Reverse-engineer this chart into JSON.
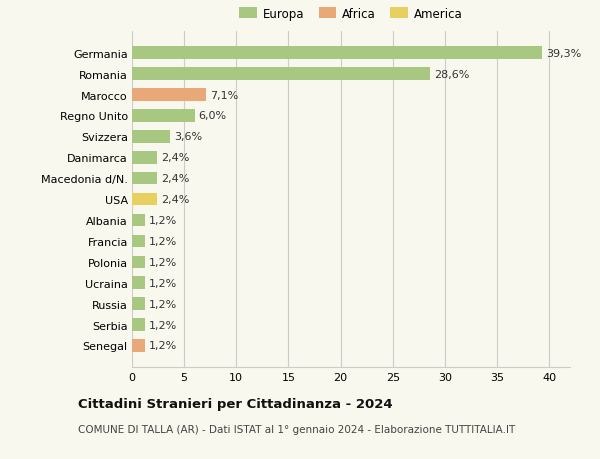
{
  "categories": [
    "Germania",
    "Romania",
    "Marocco",
    "Regno Unito",
    "Svizzera",
    "Danimarca",
    "Macedonia d/N.",
    "USA",
    "Albania",
    "Francia",
    "Polonia",
    "Ucraina",
    "Russia",
    "Serbia",
    "Senegal"
  ],
  "values": [
    39.3,
    28.6,
    7.1,
    6.0,
    3.6,
    2.4,
    2.4,
    2.4,
    1.2,
    1.2,
    1.2,
    1.2,
    1.2,
    1.2,
    1.2
  ],
  "labels": [
    "39,3%",
    "28,6%",
    "7,1%",
    "6,0%",
    "3,6%",
    "2,4%",
    "2,4%",
    "2,4%",
    "1,2%",
    "1,2%",
    "1,2%",
    "1,2%",
    "1,2%",
    "1,2%",
    "1,2%"
  ],
  "colors": [
    "#a8c882",
    "#a8c882",
    "#e8a878",
    "#a8c882",
    "#a8c882",
    "#a8c882",
    "#a8c882",
    "#e8d060",
    "#a8c882",
    "#a8c882",
    "#a8c882",
    "#a8c882",
    "#a8c882",
    "#a8c882",
    "#e8a878"
  ],
  "legend_labels": [
    "Europa",
    "Africa",
    "America"
  ],
  "legend_colors": [
    "#a8c882",
    "#e8a878",
    "#e8d060"
  ],
  "xlim": [
    0,
    42
  ],
  "xticks": [
    0,
    5,
    10,
    15,
    20,
    25,
    30,
    35,
    40
  ],
  "title": "Cittadini Stranieri per Cittadinanza - 2024",
  "subtitle": "COMUNE DI TALLA (AR) - Dati ISTAT al 1° gennaio 2024 - Elaborazione TUTTITALIA.IT",
  "bg_color": "#f8f8ee",
  "bar_height": 0.6,
  "grid_color": "#cccccc",
  "label_fontsize": 8.0,
  "ytick_fontsize": 8.0,
  "xtick_fontsize": 8.0,
  "legend_fontsize": 8.5,
  "title_fontsize": 9.5,
  "subtitle_fontsize": 7.5
}
